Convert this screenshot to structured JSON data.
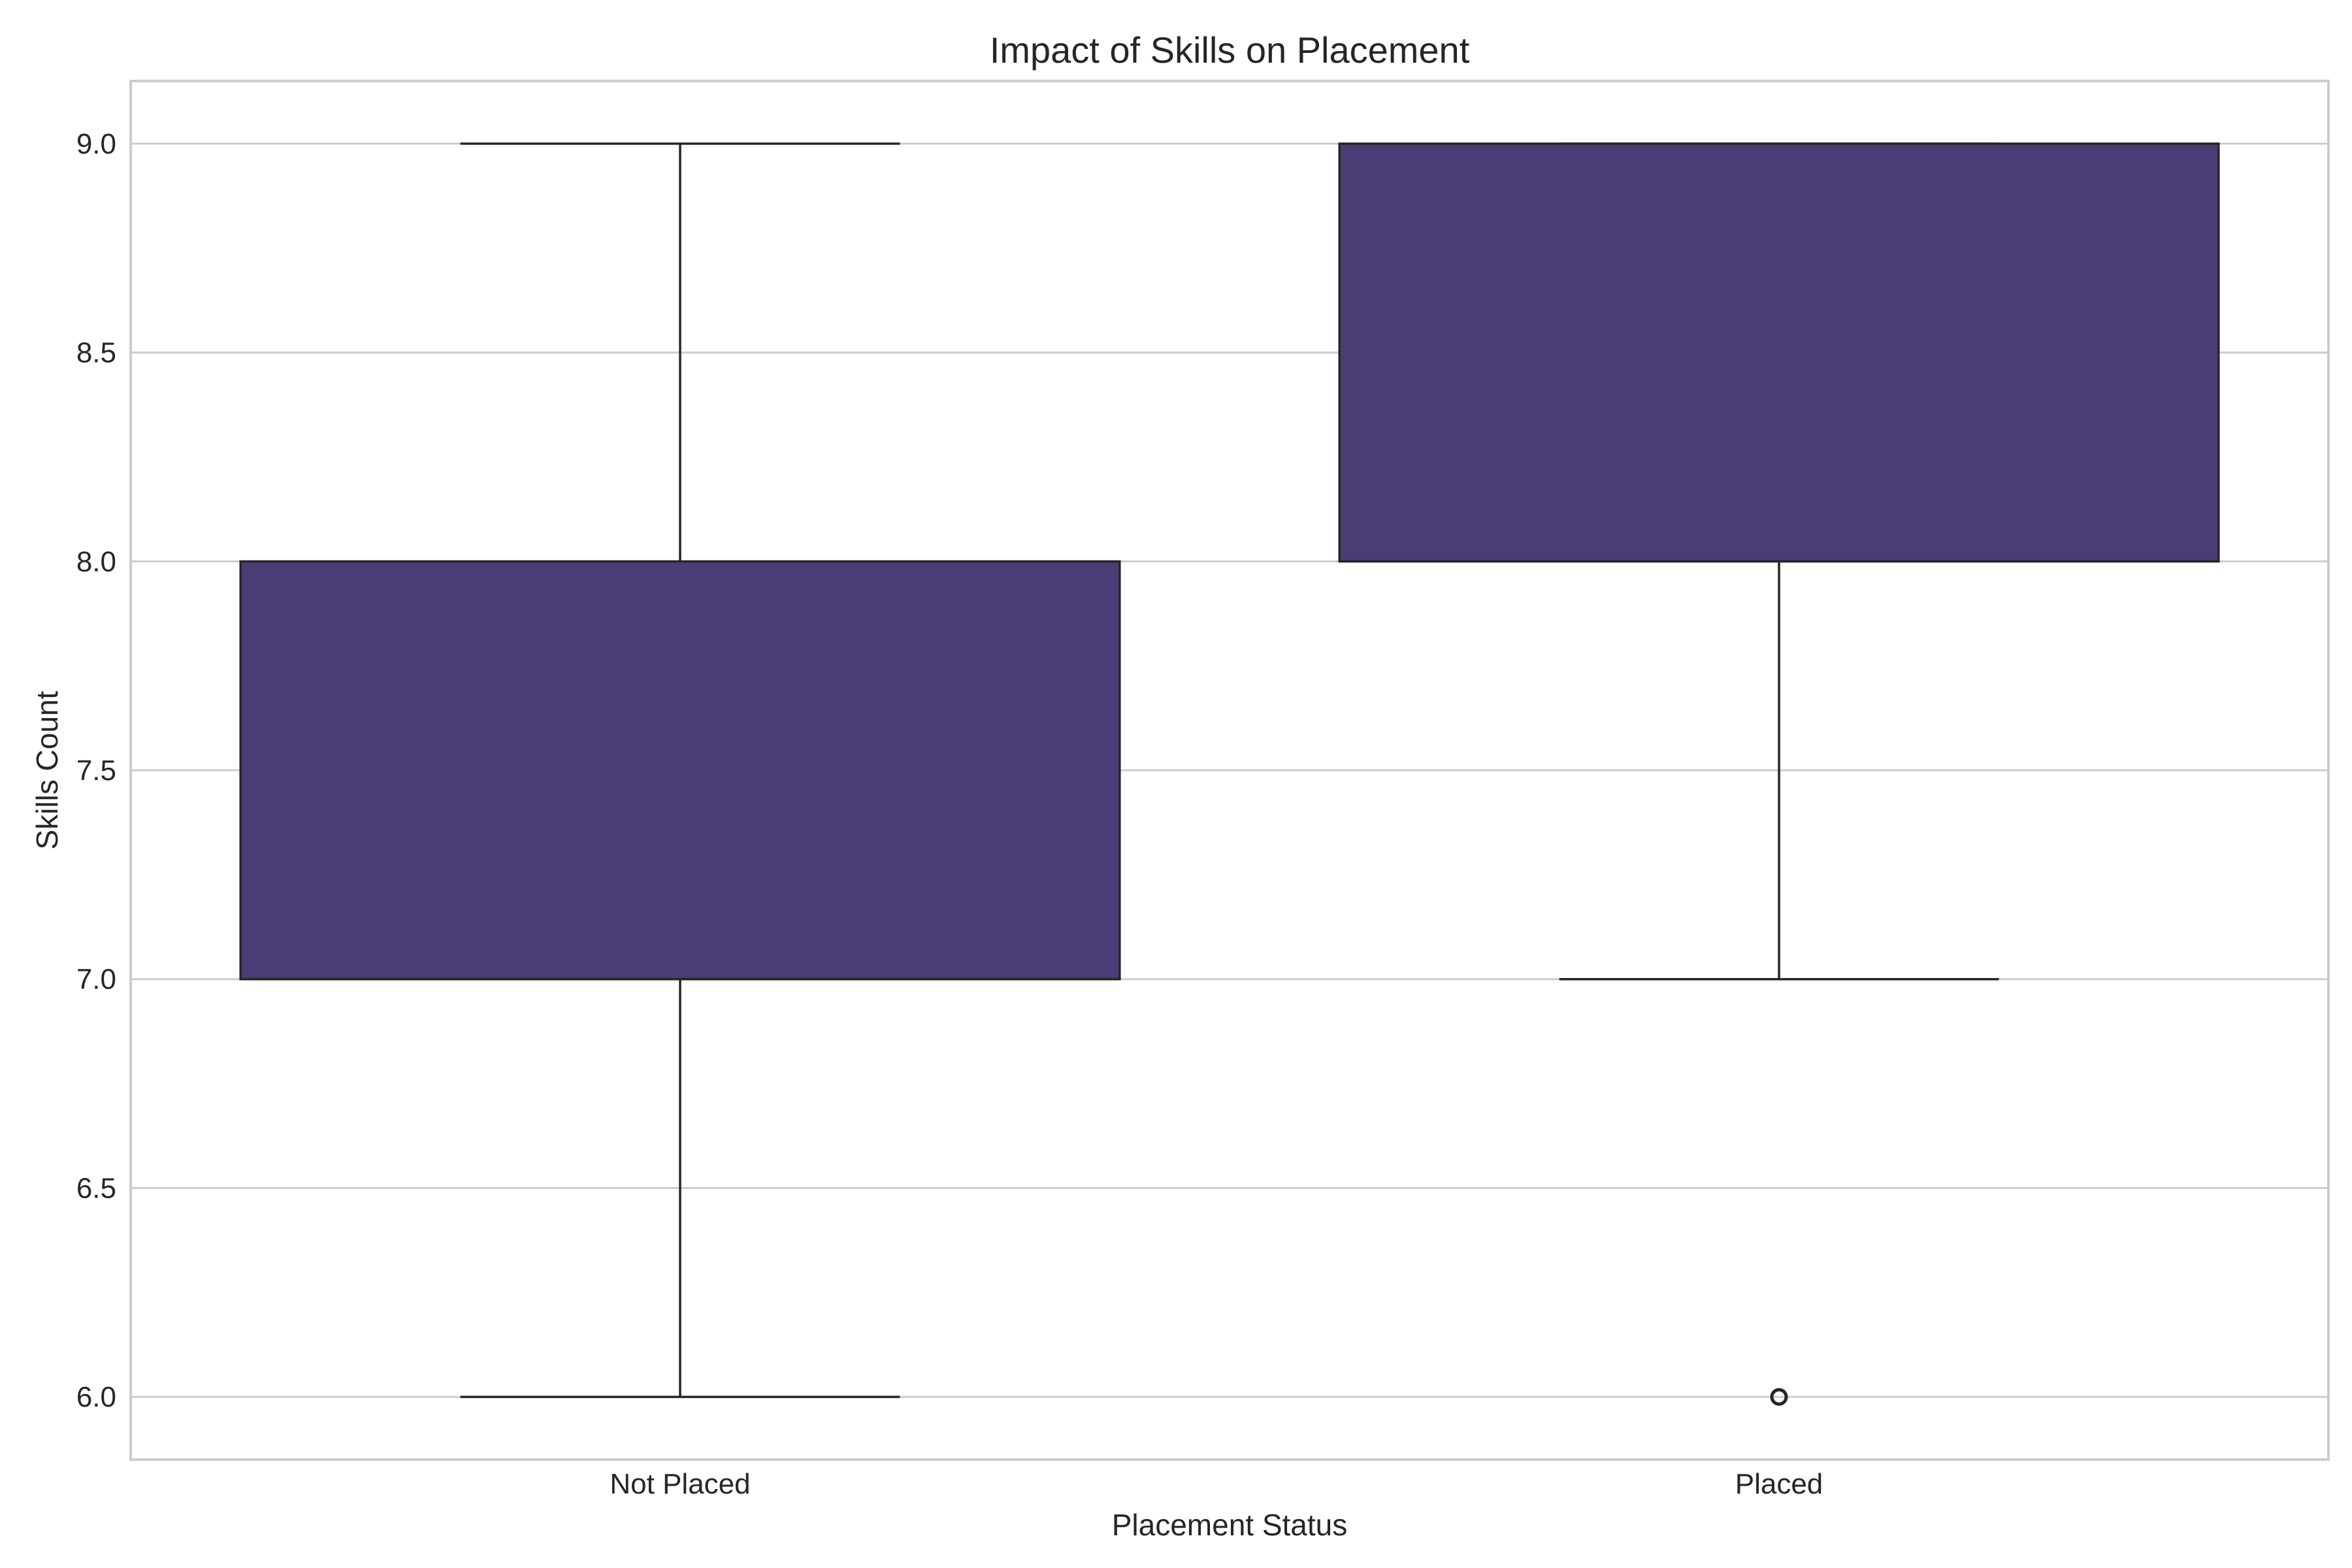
{
  "chart_data": {
    "type": "box",
    "title": "Impact of Skills on Placement",
    "xlabel": "Placement Status",
    "ylabel": "Skills Count",
    "categories": [
      "Not Placed",
      "Placed"
    ],
    "boxes": [
      {
        "category": "Not Placed",
        "whisker_low": 6.0,
        "q1": 7.0,
        "median": 7.0,
        "q3": 8.0,
        "whisker_high": 9.0,
        "outliers": []
      },
      {
        "category": "Placed",
        "whisker_low": 7.0,
        "q1": 8.0,
        "median": 8.0,
        "q3": 9.0,
        "whisker_high": 9.0,
        "outliers": [
          6.0
        ]
      }
    ],
    "ylim": [
      5.85,
      9.15
    ],
    "yticks": [
      "6.0",
      "6.5",
      "7.0",
      "7.5",
      "8.0",
      "8.5",
      "9.0"
    ],
    "box_color": "#4a3c74",
    "line_color": "#262626",
    "grid": true
  }
}
